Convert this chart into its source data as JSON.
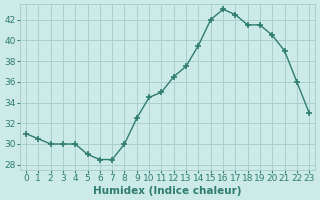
{
  "x": [
    0,
    1,
    2,
    3,
    4,
    5,
    6,
    7,
    8,
    9,
    10,
    11,
    12,
    13,
    14,
    15,
    16,
    17,
    18,
    19,
    20,
    21,
    22,
    23
  ],
  "y": [
    31.0,
    30.5,
    30.0,
    30.0,
    30.0,
    29.0,
    28.5,
    28.5,
    30.0,
    32.5,
    34.5,
    35.0,
    36.5,
    37.5,
    39.5,
    42.0,
    43.0,
    42.5,
    41.5,
    41.5,
    40.5,
    39.0,
    36.0,
    33.0
  ],
  "line_color": "#2e7d6e",
  "marker": "+",
  "marker_size": 4,
  "line_width": 1.0,
  "xlabel": "Humidex (Indice chaleur)",
  "xlabel_fontsize": 7.5,
  "tick_fontsize": 6.5,
  "xlim": [
    -0.5,
    23.5
  ],
  "ylim": [
    27.5,
    43.5
  ],
  "yticks": [
    28,
    30,
    32,
    34,
    36,
    38,
    40,
    42
  ],
  "xticks": [
    0,
    1,
    2,
    3,
    4,
    5,
    6,
    7,
    8,
    9,
    10,
    11,
    12,
    13,
    14,
    15,
    16,
    17,
    18,
    19,
    20,
    21,
    22,
    23
  ],
  "background_color": "#cceae8",
  "grid_color": "#aacfcc",
  "tick_color": "#2e7d6e",
  "label_color": "#2e7d6e"
}
